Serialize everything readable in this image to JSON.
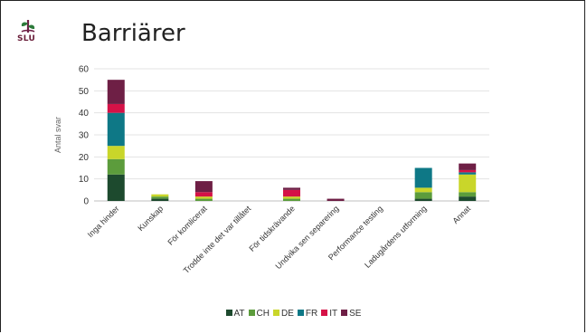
{
  "slide": {
    "logo_text": "SLU",
    "title": "Barriärer"
  },
  "chart_data": {
    "type": "bar",
    "stacked": true,
    "title": "",
    "xlabel": "",
    "ylabel": "Antal svar",
    "ylim": [
      0,
      60
    ],
    "yticks": [
      0,
      10,
      20,
      30,
      40,
      50,
      60
    ],
    "grid": true,
    "legend_position": "bottom",
    "categories": [
      "Inga hinder",
      "Kunskap",
      "För komlicerat",
      "Trodde inte det var tillåtet",
      "För tidskrävande",
      "Undvika sen separering",
      "Performance testing",
      "Ladugårdens utforming",
      "Annat"
    ],
    "series": [
      {
        "name": "AT",
        "color": "#1d4a2e",
        "values": [
          12,
          1,
          0,
          0,
          0,
          0,
          0,
          1,
          2
        ]
      },
      {
        "name": "CH",
        "color": "#5c9c3c",
        "values": [
          7,
          1,
          1,
          0,
          1,
          0,
          0,
          3,
          2
        ]
      },
      {
        "name": "DE",
        "color": "#c9d62a",
        "values": [
          6,
          1,
          1,
          0,
          1,
          0,
          0,
          2,
          8
        ]
      },
      {
        "name": "FR",
        "color": "#0e7886",
        "values": [
          15,
          0,
          0,
          0,
          0,
          0,
          0,
          9,
          1
        ]
      },
      {
        "name": "IT",
        "color": "#d51247",
        "values": [
          4,
          0,
          2,
          0,
          3,
          0,
          0,
          0,
          1
        ]
      },
      {
        "name": "SE",
        "color": "#6e1f45",
        "values": [
          11,
          0,
          5,
          0,
          1,
          1,
          0,
          0,
          3
        ]
      }
    ]
  }
}
